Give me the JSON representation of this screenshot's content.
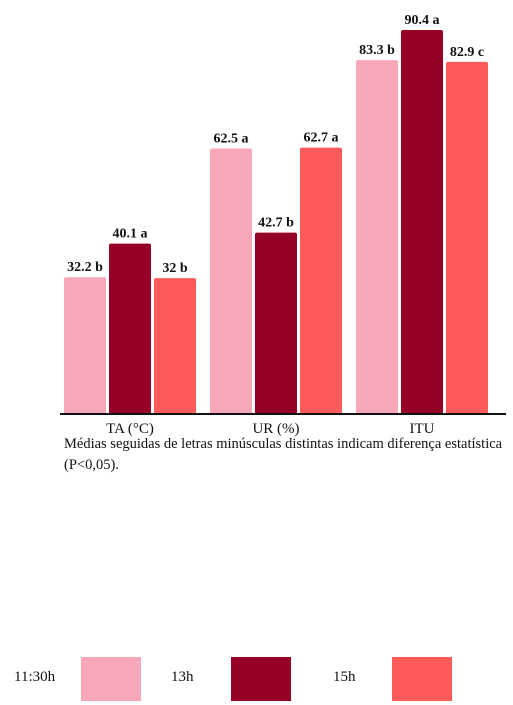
{
  "colors": {
    "s1130": "#F7A7B7",
    "s13": "#960026",
    "s15": "#FF5A5A",
    "axis": "#111111",
    "label": "#111111"
  },
  "note": "Médias seguidas de letras minúsculas distintas indicam diferença estatística (P<0,05).",
  "chart_data": {
    "type": "bar",
    "categories": [
      "TA (°C)",
      "UR (%)",
      "ITU"
    ],
    "series": [
      {
        "name": "11:30h",
        "values": [
          32.2,
          62.5,
          83.3
        ],
        "labels": [
          "32.2 b",
          "62.5 a",
          "83.3 b"
        ],
        "color": "#F7A7B7"
      },
      {
        "name": "13h",
        "values": [
          40.1,
          42.7,
          90.4
        ],
        "labels": [
          "40.1 a",
          "42.7 b",
          "90.4 a"
        ],
        "color": "#960026"
      },
      {
        "name": "15h",
        "values": [
          32,
          62.7,
          82.9
        ],
        "labels": [
          "32 b",
          "62.7 a",
          "82.9 c"
        ],
        "color": "#FF5A5A"
      }
    ],
    "ylim": [
      0,
      90.4
    ],
    "grid": false,
    "legend_position": "bottom"
  }
}
